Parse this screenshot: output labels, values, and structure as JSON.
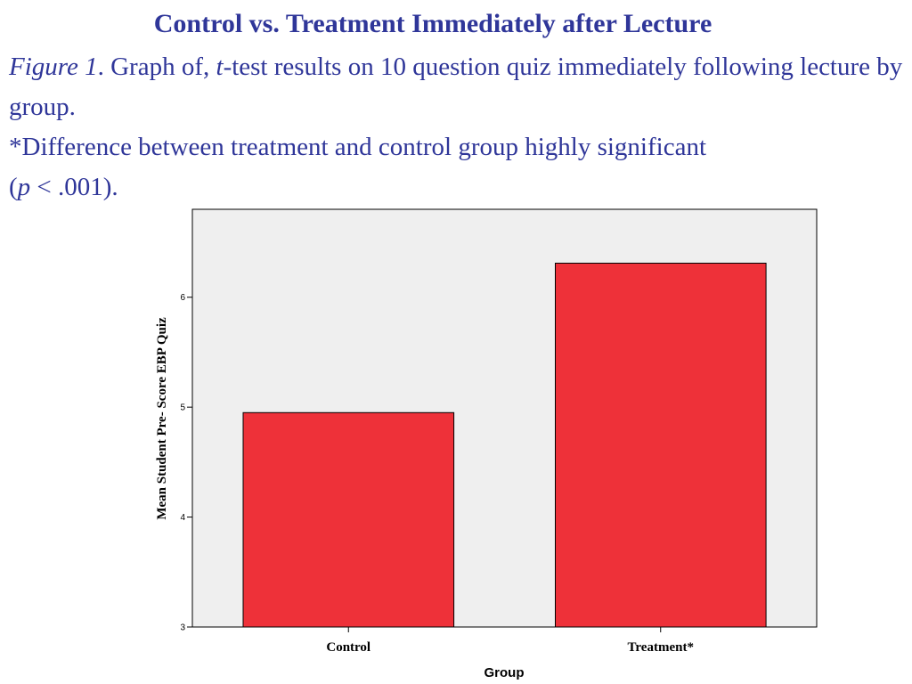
{
  "slide": {
    "title": "Control vs. Treatment Immediately after Lecture"
  },
  "caption": {
    "figure_label": "Figure 1",
    "figure_label_period": ". ",
    "graph_of": "Graph of, ",
    "t_italic": "t",
    "rest_line1": "-test results on 10 question quiz immediately following lecture by group.",
    "significance_line": "*Difference between treatment and control group highly significant",
    "p_open": "(",
    "p_italic": "p",
    "p_rest": " < .001)."
  },
  "colors": {
    "text_blue": "#2f3699",
    "bar_fill": "#ee3139",
    "plot_background": "#efefef"
  },
  "chart_data": {
    "type": "bar",
    "categories": [
      "Control",
      "Treatment*"
    ],
    "values": [
      4.95,
      6.31
    ],
    "xlabel": "Group",
    "ylabel": "Mean Student Pre- Score EBP Quiz",
    "ylim": [
      3,
      6.8
    ],
    "yticks": [
      3,
      4,
      5,
      6
    ],
    "ytick_labels": [
      "3",
      "4",
      "5",
      "6"
    ],
    "grid": false
  }
}
